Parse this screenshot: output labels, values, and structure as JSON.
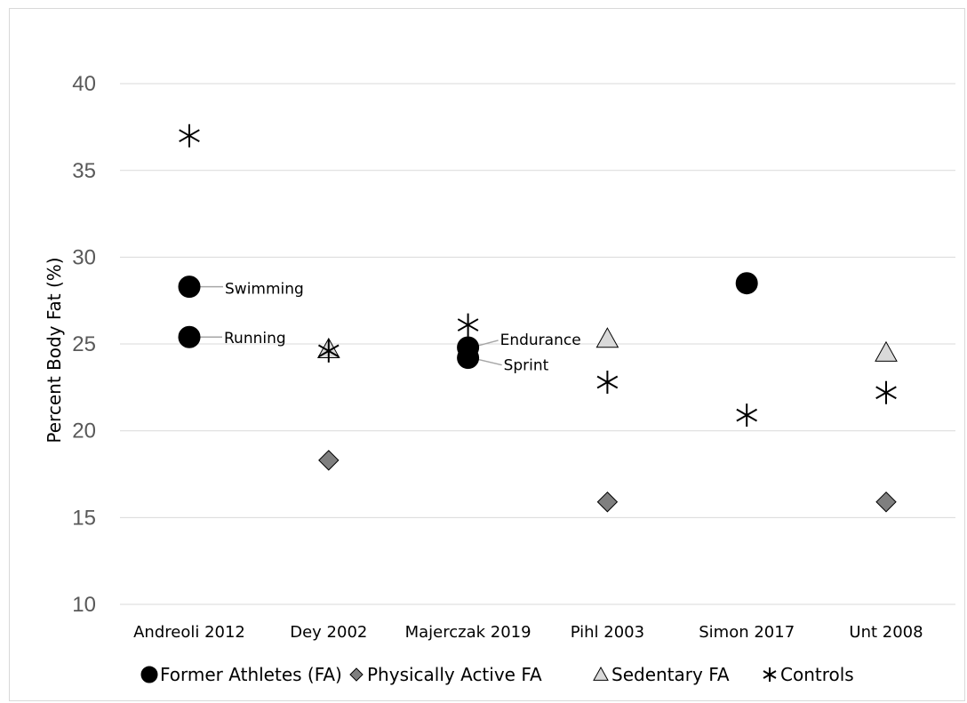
{
  "chart_data": {
    "type": "scatter",
    "title": "",
    "xlabel": "",
    "ylabel": "Percent Body Fat (%)",
    "ylim": [
      10,
      40
    ],
    "yticks": [
      10,
      15,
      20,
      25,
      30,
      35,
      40
    ],
    "grid": true,
    "legend_position": "bottom",
    "categories": [
      "Andreoli 2012",
      "Dey 2002",
      "Majerczak 2019",
      "Pihl 2003",
      "Simon 2017",
      "Unt 2008"
    ],
    "series": [
      {
        "name": "Former Athletes (FA)",
        "marker": "circle",
        "color": "#000000",
        "points": [
          {
            "category": "Andreoli 2012",
            "y": 28.3,
            "label": "Swimming"
          },
          {
            "category": "Andreoli 2012",
            "y": 25.4,
            "label": "Running"
          },
          {
            "category": "Majerczak 2019",
            "y": 24.8,
            "label": "Endurance"
          },
          {
            "category": "Majerczak 2019",
            "y": 24.2,
            "label": "Sprint"
          },
          {
            "category": "Simon 2017",
            "y": 28.5
          }
        ]
      },
      {
        "name": "Physically Active FA",
        "marker": "diamond",
        "color": "#7f7f7f",
        "points": [
          {
            "category": "Dey 2002",
            "y": 18.3
          },
          {
            "category": "Pihl 2003",
            "y": 15.9
          },
          {
            "category": "Unt 2008",
            "y": 15.9
          }
        ]
      },
      {
        "name": "Sedentary FA",
        "marker": "triangle",
        "color": "#d9d9d9",
        "points": [
          {
            "category": "Dey 2002",
            "y": 24.7
          },
          {
            "category": "Pihl 2003",
            "y": 25.3
          },
          {
            "category": "Unt 2008",
            "y": 24.5
          }
        ]
      },
      {
        "name": "Controls",
        "marker": "star",
        "color": "#000000",
        "points": [
          {
            "category": "Andreoli 2012",
            "y": 37.0
          },
          {
            "category": "Dey 2002",
            "y": 24.6
          },
          {
            "category": "Majerczak 2019",
            "y": 26.1
          },
          {
            "category": "Pihl 2003",
            "y": 22.8
          },
          {
            "category": "Simon 2017",
            "y": 20.9
          },
          {
            "category": "Unt 2008",
            "y": 22.2
          }
        ]
      }
    ]
  }
}
